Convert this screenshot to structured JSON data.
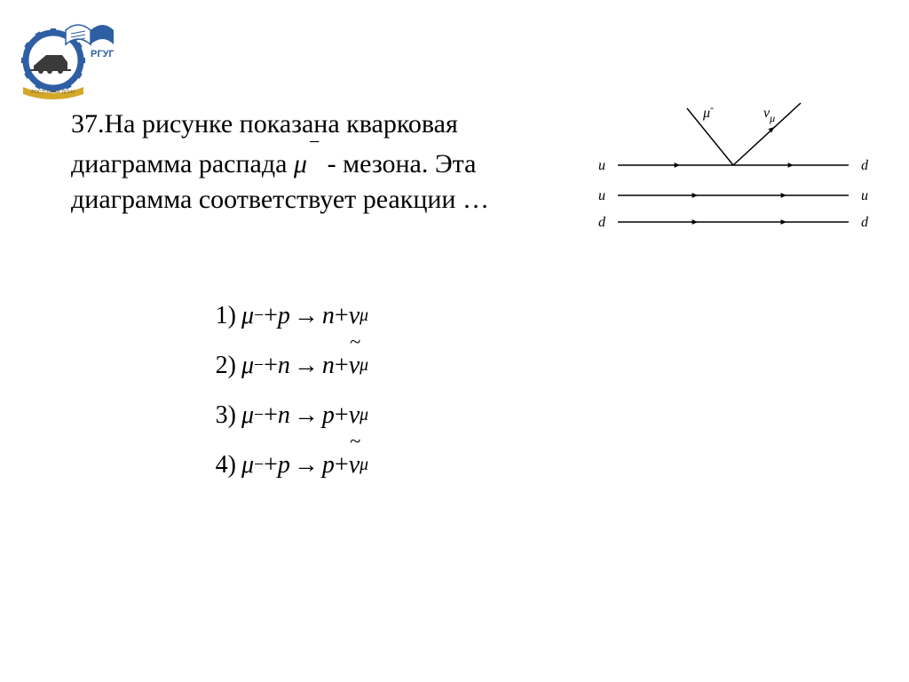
{
  "question_number": "37.",
  "question_text_1": "На рисунке показана кварковая диаграмма распада ",
  "question_particle": "μ",
  "question_particle_sup": "−",
  "question_text_2": " - мезона. Эта диаграмма соответствует реакции …",
  "diagram": {
    "quark_labels_left": [
      "u",
      "u",
      "d"
    ],
    "quark_labels_right": [
      "d",
      "u",
      "d"
    ],
    "top_left_label": "μ",
    "top_left_sup": "-",
    "top_right_label": "ν",
    "top_right_sub": "μ",
    "line_color": "#000000",
    "label_font": "italic 16px Times",
    "arrow_head": 7
  },
  "answers": [
    {
      "n": "1)",
      "lhs_a": "μ",
      "lhs_a_sup": "−",
      "lhs_b": "p",
      "rhs_a": "n",
      "rhs_b": "ν",
      "rhs_b_sub": "μ",
      "tilde": false
    },
    {
      "n": "2)",
      "lhs_a": "μ",
      "lhs_a_sup": "−",
      "lhs_b": "n",
      "rhs_a": "n",
      "rhs_b": "ν",
      "rhs_b_sub": "μ",
      "tilde": true
    },
    {
      "n": "3)",
      "lhs_a": "μ",
      "lhs_a_sup": "−",
      "lhs_b": "n",
      "rhs_a": "p",
      "rhs_b": "ν",
      "rhs_b_sub": "μ",
      "tilde": false
    },
    {
      "n": "4)",
      "lhs_a": "μ",
      "lhs_a_sup": "−",
      "lhs_b": "p",
      "rhs_a": "p",
      "rhs_b": "ν",
      "rhs_b_sub": "μ",
      "tilde": true
    }
  ],
  "logo": {
    "text": "РГУПС",
    "subtext": "РОСТОВ-НА-ДОНУ",
    "gear_color": "#2e5fa4",
    "book_blue": "#2e5fa4",
    "book_white": "#ffffff",
    "train_color": "#3a3a3a",
    "ribbon_color": "#d4a829"
  }
}
